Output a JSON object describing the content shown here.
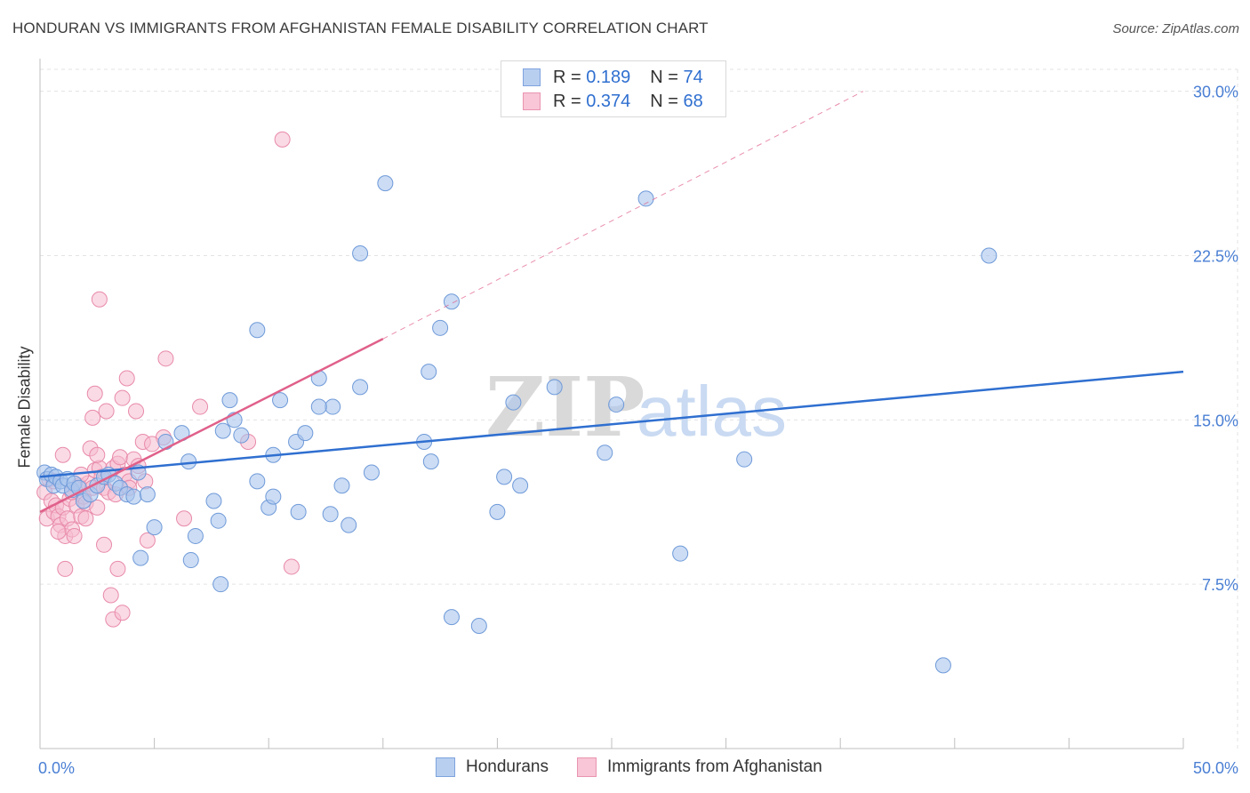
{
  "title": "HONDURAN VS IMMIGRANTS FROM AFGHANISTAN FEMALE DISABILITY CORRELATION CHART",
  "source": "Source: ZipAtlas.com",
  "watermark": {
    "zip": "ZIP",
    "atlas": "atlas"
  },
  "legend": {
    "r_label": "R =",
    "n_label": "N =",
    "hondurans": {
      "r": "0.189",
      "n": "74"
    },
    "afghan": {
      "r": "0.374",
      "n": "68"
    }
  },
  "bottom_legend": {
    "series1": "Hondurans",
    "series2": "Immigrants from Afghanistan"
  },
  "colors": {
    "blue_fill": "#a9c4ec",
    "blue_stroke": "#6f9ad9",
    "blue_line": "#2f6fd0",
    "pink_fill": "#f6bccf",
    "pink_stroke": "#e88aa9",
    "pink_line": "#e0608a",
    "axis_text": "#4a7fd4",
    "grid": "#e3e3e3"
  },
  "chart_data": {
    "type": "scatter",
    "title": "HONDURAN VS IMMIGRANTS FROM AFGHANISTAN FEMALE DISABILITY CORRELATION CHART",
    "xlabel": "",
    "ylabel": "Female Disability",
    "xlim": [
      0,
      50
    ],
    "ylim": [
      0,
      31
    ],
    "x_tick_labels": [
      "0.0%",
      "50.0%"
    ],
    "y_ticks": [
      7.5,
      15.0,
      22.5,
      30.0
    ],
    "y_tick_labels": [
      "7.5%",
      "15.0%",
      "22.5%",
      "30.0%"
    ],
    "grid": true,
    "series": [
      {
        "name": "Hondurans",
        "r": 0.189,
        "n": 74,
        "trend": {
          "x": [
            0,
            50
          ],
          "y": [
            12.4,
            17.2
          ],
          "style": "solid"
        },
        "points": [
          [
            0.2,
            12.6
          ],
          [
            0.3,
            12.3
          ],
          [
            0.5,
            12.5
          ],
          [
            0.6,
            12.0
          ],
          [
            0.7,
            12.4
          ],
          [
            0.9,
            12.2
          ],
          [
            1.0,
            12.0
          ],
          [
            1.2,
            12.3
          ],
          [
            1.4,
            11.8
          ],
          [
            1.5,
            12.1
          ],
          [
            1.7,
            11.9
          ],
          [
            1.9,
            11.3
          ],
          [
            2.2,
            11.6
          ],
          [
            2.5,
            12.0
          ],
          [
            2.8,
            12.4
          ],
          [
            3.0,
            12.5
          ],
          [
            3.3,
            12.1
          ],
          [
            3.5,
            11.9
          ],
          [
            3.8,
            11.6
          ],
          [
            4.1,
            11.5
          ],
          [
            4.3,
            12.6
          ],
          [
            4.7,
            11.6
          ],
          [
            5.0,
            10.1
          ],
          [
            5.5,
            14.0
          ],
          [
            4.4,
            8.7
          ],
          [
            6.2,
            14.4
          ],
          [
            6.5,
            13.1
          ],
          [
            6.8,
            9.7
          ],
          [
            6.6,
            8.6
          ],
          [
            7.6,
            11.3
          ],
          [
            7.8,
            10.4
          ],
          [
            7.9,
            7.5
          ],
          [
            8.0,
            14.5
          ],
          [
            8.3,
            15.9
          ],
          [
            8.5,
            15.0
          ],
          [
            8.8,
            14.3
          ],
          [
            9.5,
            12.2
          ],
          [
            10.0,
            11.0
          ],
          [
            10.5,
            15.9
          ],
          [
            10.2,
            13.4
          ],
          [
            11.2,
            14.0
          ],
          [
            11.6,
            14.4
          ],
          [
            12.2,
            16.9
          ],
          [
            12.8,
            15.6
          ],
          [
            13.2,
            12.0
          ],
          [
            13.5,
            10.2
          ],
          [
            14.0,
            16.5
          ],
          [
            14.5,
            12.6
          ],
          [
            14.0,
            22.6
          ],
          [
            12.2,
            15.6
          ],
          [
            9.5,
            19.1
          ],
          [
            10.2,
            11.5
          ],
          [
            11.3,
            10.8
          ],
          [
            12.7,
            10.7
          ],
          [
            15.1,
            25.8
          ],
          [
            17.1,
            13.1
          ],
          [
            16.8,
            14.0
          ],
          [
            18.0,
            20.4
          ],
          [
            17.5,
            19.2
          ],
          [
            17.0,
            17.2
          ],
          [
            19.2,
            5.6
          ],
          [
            20.0,
            10.8
          ],
          [
            20.7,
            15.8
          ],
          [
            21.0,
            12.0
          ],
          [
            22.5,
            16.5
          ],
          [
            24.7,
            13.5
          ],
          [
            25.2,
            15.7
          ],
          [
            26.5,
            25.1
          ],
          [
            28.0,
            8.9
          ],
          [
            30.8,
            13.2
          ],
          [
            39.5,
            3.8
          ],
          [
            41.5,
            22.5
          ],
          [
            18.0,
            6.0
          ],
          [
            20.3,
            12.4
          ]
        ]
      },
      {
        "name": "Immigrants from Afghanistan",
        "r": 0.374,
        "n": 68,
        "trend": {
          "x": [
            0,
            15
          ],
          "y": [
            10.8,
            18.7
          ],
          "style": "solid",
          "extended": {
            "x": [
              15,
              36
            ],
            "y": [
              18.7,
              30.0
            ],
            "style": "dashed"
          }
        },
        "points": [
          [
            0.2,
            11.7
          ],
          [
            0.3,
            10.5
          ],
          [
            0.4,
            12.3
          ],
          [
            0.5,
            11.3
          ],
          [
            0.6,
            10.8
          ],
          [
            0.7,
            11.1
          ],
          [
            0.8,
            10.6
          ],
          [
            0.9,
            10.2
          ],
          [
            1.0,
            11.0
          ],
          [
            1.1,
            9.7
          ],
          [
            1.2,
            10.5
          ],
          [
            1.3,
            11.4
          ],
          [
            1.4,
            10.0
          ],
          [
            1.5,
            9.7
          ],
          [
            1.6,
            11.1
          ],
          [
            1.7,
            12.0
          ],
          [
            1.8,
            10.6
          ],
          [
            1.9,
            11.5
          ],
          [
            2.0,
            11.2
          ],
          [
            2.1,
            12.1
          ],
          [
            2.2,
            13.7
          ],
          [
            2.3,
            11.9
          ],
          [
            2.4,
            12.7
          ],
          [
            2.5,
            11.0
          ],
          [
            2.6,
            12.8
          ],
          [
            2.7,
            12.4
          ],
          [
            2.8,
            11.9
          ],
          [
            3.0,
            11.7
          ],
          [
            3.2,
            12.8
          ],
          [
            3.4,
            13.0
          ],
          [
            3.5,
            13.3
          ],
          [
            3.7,
            12.5
          ],
          [
            3.9,
            12.2
          ],
          [
            4.1,
            13.2
          ],
          [
            4.3,
            12.9
          ],
          [
            4.5,
            14.0
          ],
          [
            4.7,
            9.5
          ],
          [
            4.2,
            15.4
          ],
          [
            2.9,
            15.4
          ],
          [
            3.6,
            16.0
          ],
          [
            1.1,
            8.2
          ],
          [
            2.8,
            9.3
          ],
          [
            3.1,
            7.0
          ],
          [
            3.2,
            5.9
          ],
          [
            3.4,
            8.2
          ],
          [
            3.6,
            6.2
          ],
          [
            2.6,
            20.5
          ],
          [
            5.5,
            17.8
          ],
          [
            5.4,
            14.2
          ],
          [
            3.8,
            16.9
          ],
          [
            7.0,
            15.6
          ],
          [
            2.3,
            15.1
          ],
          [
            4.9,
            13.9
          ],
          [
            6.3,
            10.5
          ],
          [
            11.0,
            8.3
          ],
          [
            9.1,
            14.0
          ],
          [
            10.6,
            27.8
          ],
          [
            4.6,
            12.2
          ],
          [
            0.6,
            12.2
          ],
          [
            2.4,
            16.2
          ],
          [
            1.0,
            13.4
          ],
          [
            1.4,
            11.7
          ],
          [
            2.0,
            10.5
          ],
          [
            3.3,
            11.6
          ],
          [
            2.5,
            13.4
          ],
          [
            3.9,
            11.9
          ],
          [
            0.8,
            9.9
          ],
          [
            1.8,
            12.5
          ]
        ]
      }
    ]
  }
}
